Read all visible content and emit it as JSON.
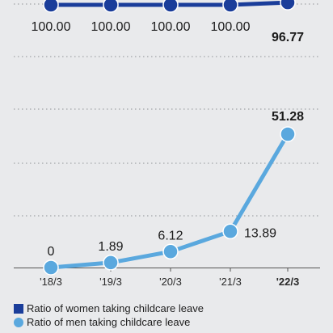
{
  "chart_data": {
    "type": "line",
    "categories": [
      "'18/3",
      "'19/3",
      "'20/3",
      "'21/3",
      "'22/3"
    ],
    "series": [
      {
        "name": "Ratio of women taking childcare leave",
        "values": [
          100.0,
          100.0,
          100.0,
          100.0,
          96.77
        ],
        "labels": [
          "100.00",
          "100.00",
          "100.00",
          "100.00",
          "96.77"
        ],
        "color": "#1a3d9a"
      },
      {
        "name": "Ratio of men taking childcare leave",
        "values": [
          0,
          1.89,
          6.12,
          13.89,
          51.28
        ],
        "labels": [
          "0",
          "1.89",
          "6.12",
          "13.89",
          "51.28"
        ],
        "color": "#5aa8de"
      }
    ],
    "bold_last": true,
    "grid": true,
    "legend_position": "bottom-left"
  }
}
